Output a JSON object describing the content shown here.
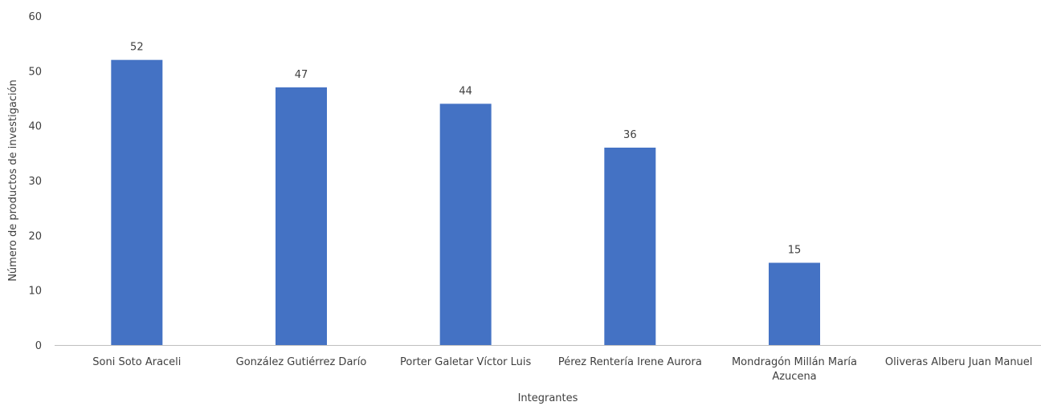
{
  "chart_data": {
    "type": "bar",
    "title": "",
    "xlabel": "Integrantes",
    "ylabel": "Número de productos de investigación",
    "ylim": [
      0,
      60
    ],
    "yticks": [
      0,
      10,
      20,
      30,
      40,
      50,
      60
    ],
    "grid": false,
    "legend": "none",
    "bar_color": "#4472C4",
    "categories": [
      [
        "Soni Soto Araceli"
      ],
      [
        "González Gutiérrez Darío"
      ],
      [
        "Porter Galetar Víctor Luis"
      ],
      [
        "Pérez Rentería Irene Aurora"
      ],
      [
        "Mondragón Millán María",
        "Azucena"
      ],
      [
        "Oliveras Alberu Juan Manuel"
      ]
    ],
    "values": [
      52,
      47,
      44,
      36,
      15,
      null
    ],
    "data_labels": [
      "52",
      "47",
      "44",
      "36",
      "15",
      ""
    ]
  }
}
